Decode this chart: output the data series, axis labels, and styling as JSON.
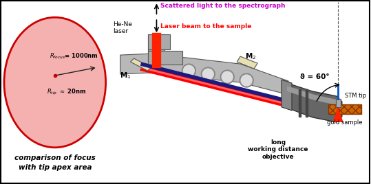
{
  "bg_color": "#ffffff",
  "border_color": "#000000",
  "scattered_text": "Scattered light to the spectrograph",
  "scattered_color": "#cc00cc",
  "laser_text": "Laser beam to the sample",
  "laser_color": "#ff0000",
  "hene_text": "He-Ne\nlaser",
  "ellipse_edge": "#cc0000",
  "ellipse_face": "#f5b0b0",
  "focus_text_main": "comparison of focus",
  "focus_text_sub": "with tip apex area",
  "m1_label": "M$_1$",
  "m2_label": "M$_2$",
  "angle_label": "ϑ = 60°",
  "stm_label": "STM tip",
  "long_wd_label": "long\nworking distance\nobjective",
  "gold_label": "gold sample",
  "body_color": "#b0b0b0",
  "body_edge": "#555555",
  "obj_dark": "#555555",
  "obj_mid": "#888888",
  "obj_light": "#cccccc",
  "mirror_color": "#d4d090",
  "beam_red": "#ff0000",
  "beam_dark": "#1a1a6e",
  "gold_color": "#cc6600",
  "gold_hatch_color": "#aa4400"
}
